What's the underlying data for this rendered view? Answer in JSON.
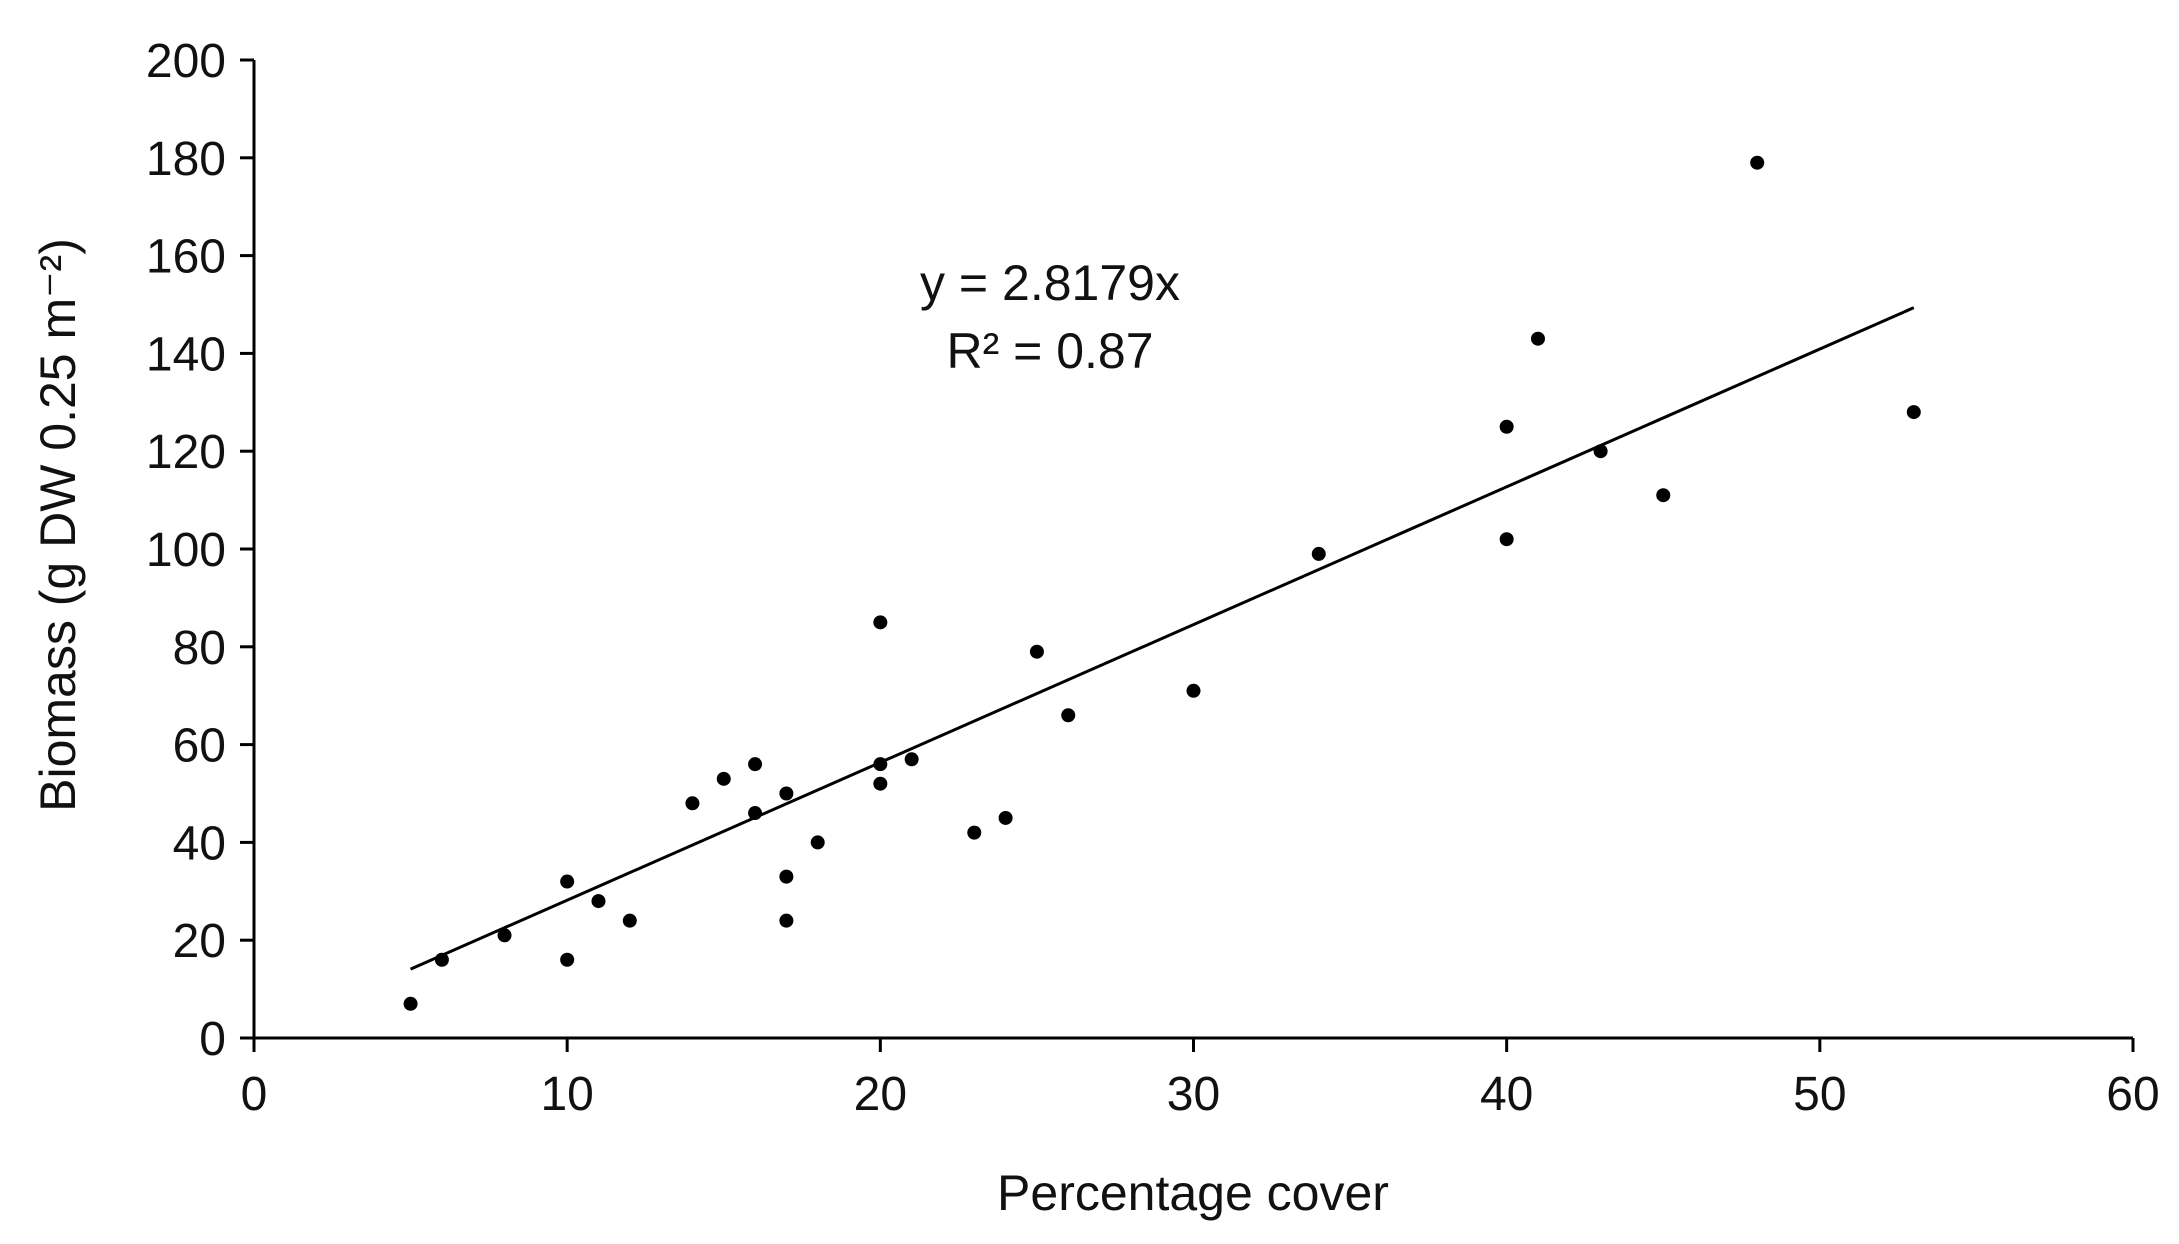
{
  "chart_data": {
    "type": "scatter",
    "xlabel": "Percentage cover",
    "ylabel": "Biomass (g DW 0.25 m⁻²)",
    "xlim": [
      0,
      60
    ],
    "ylim": [
      0,
      200
    ],
    "xticks": [
      "0",
      "10",
      "20",
      "30",
      "40",
      "50",
      "60"
    ],
    "yticks": [
      "0",
      "20",
      "40",
      "60",
      "80",
      "100",
      "120",
      "140",
      "160",
      "180",
      "200"
    ],
    "grid": false,
    "legend": "none",
    "points": [
      {
        "x": 5,
        "y": 7
      },
      {
        "x": 6,
        "y": 16
      },
      {
        "x": 8,
        "y": 21
      },
      {
        "x": 10,
        "y": 16
      },
      {
        "x": 10,
        "y": 32
      },
      {
        "x": 11,
        "y": 28
      },
      {
        "x": 12,
        "y": 24
      },
      {
        "x": 14,
        "y": 48
      },
      {
        "x": 15,
        "y": 53
      },
      {
        "x": 16,
        "y": 56
      },
      {
        "x": 16,
        "y": 46
      },
      {
        "x": 17,
        "y": 50
      },
      {
        "x": 17,
        "y": 33
      },
      {
        "x": 17,
        "y": 24
      },
      {
        "x": 18,
        "y": 40
      },
      {
        "x": 20,
        "y": 85
      },
      {
        "x": 20,
        "y": 56
      },
      {
        "x": 20,
        "y": 52
      },
      {
        "x": 21,
        "y": 57
      },
      {
        "x": 23,
        "y": 42
      },
      {
        "x": 24,
        "y": 45
      },
      {
        "x": 25,
        "y": 79
      },
      {
        "x": 26,
        "y": 66
      },
      {
        "x": 30,
        "y": 71
      },
      {
        "x": 34,
        "y": 99
      },
      {
        "x": 40,
        "y": 125
      },
      {
        "x": 40,
        "y": 102
      },
      {
        "x": 41,
        "y": 143
      },
      {
        "x": 43,
        "y": 120
      },
      {
        "x": 45,
        "y": 111
      },
      {
        "x": 48,
        "y": 179
      },
      {
        "x": 53,
        "y": 128
      }
    ],
    "trendline": {
      "slope": 2.8179,
      "x_range": [
        5,
        53
      ],
      "equation": "y = 2.8179x",
      "r_squared": "R² = 0.87"
    },
    "colors": {
      "points": "#000000",
      "line": "#000000",
      "axis": "#000000"
    }
  }
}
